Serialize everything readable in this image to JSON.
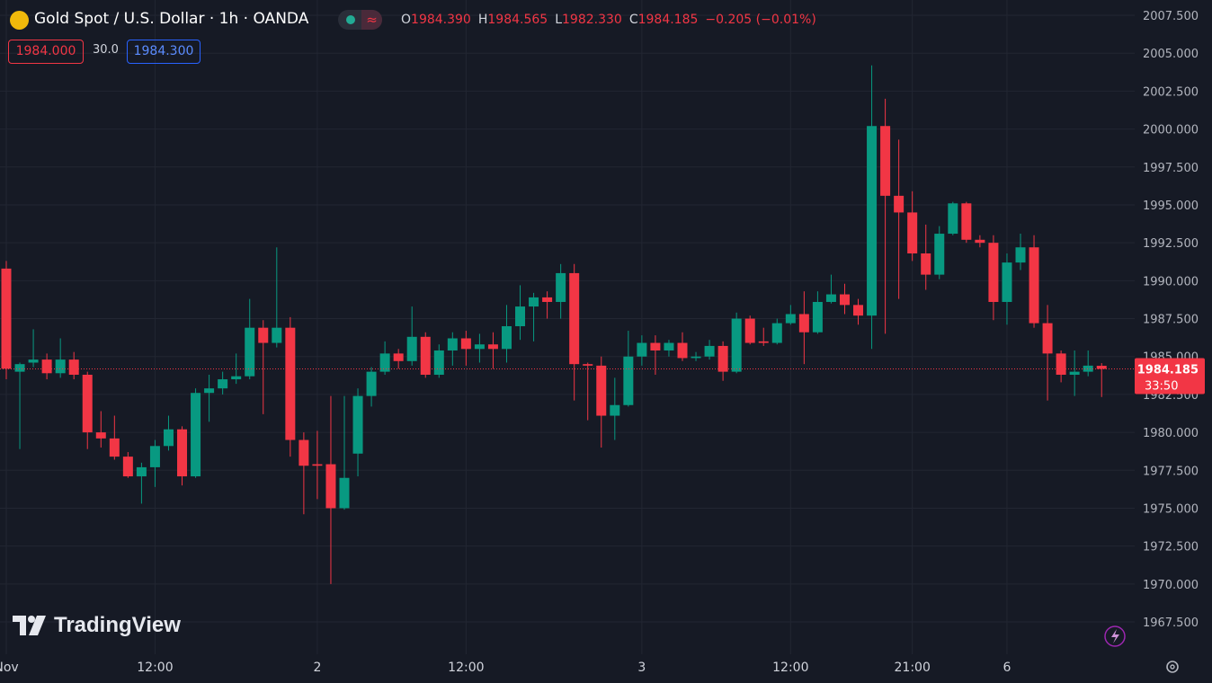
{
  "chart_data": {
    "type": "candlestick",
    "title": "Gold Spot / U.S. Dollar · 1h · OANDA",
    "ohlc_legend": [
      {
        "label": "O",
        "value": "1984.390"
      },
      {
        "label": "H",
        "value": "1984.565"
      },
      {
        "label": "L",
        "value": "1982.330"
      },
      {
        "label": "C",
        "value": "1984.185"
      }
    ],
    "change": "−0.205 (−0.01%)",
    "bid": "1984.000",
    "spread": "30.0",
    "ask": "1984.300",
    "last_price": {
      "value": 1984.185,
      "label": "1984.185"
    },
    "countdown": "33:50",
    "watermark": "TradingView",
    "up_color": "#089981",
    "down_color": "#f23645",
    "grid": true,
    "categories": [
      "Nov",
      null,
      null,
      null,
      null,
      null,
      null,
      null,
      null,
      null,
      null,
      "12:00",
      null,
      null,
      null,
      null,
      null,
      null,
      null,
      null,
      null,
      null,
      null,
      "2",
      null,
      null,
      null,
      null,
      null,
      null,
      null,
      null,
      null,
      null,
      "12:00",
      null,
      null,
      null,
      null,
      null,
      null,
      null,
      null,
      null,
      null,
      null,
      null,
      "3",
      null,
      null,
      null,
      null,
      null,
      null,
      null,
      null,
      null,
      null,
      "12:00",
      null,
      null,
      null,
      null,
      null,
      null,
      null,
      null,
      "21:00",
      null,
      null,
      null,
      null,
      null,
      null,
      "6",
      null,
      null,
      null,
      null,
      null,
      null,
      null
    ],
    "open": [
      1990.8,
      1984.0,
      1984.6,
      1984.8,
      1983.9,
      1984.8,
      1983.8,
      1980.0,
      1979.6,
      1978.4,
      1977.1,
      1977.7,
      1979.1,
      1980.2,
      1977.1,
      1982.6,
      1982.9,
      1983.5,
      1983.7,
      1986.9,
      1985.9,
      1986.9,
      1979.5,
      1977.9,
      1977.9,
      1975.0,
      1978.6,
      1982.4,
      1984.0,
      1985.2,
      1984.7,
      1986.3,
      1983.8,
      1985.4,
      1986.2,
      1985.5,
      1985.8,
      1985.5,
      1987.0,
      1988.3,
      1988.9,
      1988.6,
      1990.5,
      1984.5,
      1984.4,
      1981.1,
      1981.8,
      1985.0,
      1985.9,
      1985.4,
      1985.9,
      1984.9,
      1985.0,
      1985.7,
      1984.0,
      1987.5,
      1986.0,
      1985.9,
      1987.2,
      1987.8,
      1986.6,
      1988.6,
      1989.1,
      1988.4,
      1987.7,
      2000.2,
      1995.6,
      1994.5,
      1991.8,
      1990.4,
      1993.1,
      1995.1,
      1992.7,
      1992.5,
      1988.6,
      1991.2,
      1992.2,
      1987.2,
      1985.2,
      1983.8,
      1984.0,
      1984.39
    ],
    "high": [
      1991.3,
      1984.6,
      1986.8,
      1985.2,
      1986.2,
      1985.3,
      1984.0,
      1981.4,
      1981.1,
      1978.7,
      1978.0,
      1979.5,
      1981.1,
      1980.4,
      1982.9,
      1983.8,
      1984.0,
      1985.2,
      1988.8,
      1987.4,
      1992.2,
      1987.6,
      1980.0,
      1980.1,
      1982.4,
      1982.4,
      1982.9,
      1984.3,
      1986.0,
      1985.5,
      1988.3,
      1986.6,
      1985.8,
      1986.6,
      1986.7,
      1986.5,
      1986.6,
      1988.4,
      1989.7,
      1989.2,
      1989.3,
      1991.1,
      1991.1,
      1984.6,
      1985.0,
      1983.6,
      1986.7,
      1986.4,
      1986.4,
      1986.1,
      1986.6,
      1985.3,
      1986.1,
      1986.0,
      1987.9,
      1987.7,
      1986.9,
      1987.5,
      1988.4,
      1989.3,
      1989.3,
      1990.4,
      1989.8,
      1988.8,
      2004.2,
      2002.0,
      1999.3,
      1995.9,
      1993.7,
      1993.6,
      1995.2,
      1995.2,
      1993.0,
      1993.0,
      1991.8,
      1993.1,
      1993.0,
      1988.4,
      1985.4,
      1985.4,
      1985.4,
      1984.565
    ],
    "low": [
      1983.5,
      1978.9,
      1984.3,
      1983.5,
      1983.6,
      1983.5,
      1978.9,
      1979.0,
      1978.2,
      1977.0,
      1975.3,
      1976.4,
      1978.8,
      1976.5,
      1977.0,
      1980.7,
      1982.5,
      1983.2,
      1983.5,
      1981.2,
      1985.6,
      1978.4,
      1974.6,
      1975.6,
      1970.0,
      1974.9,
      1977.1,
      1981.7,
      1983.8,
      1984.2,
      1984.4,
      1983.6,
      1983.6,
      1984.4,
      1984.4,
      1984.6,
      1984.2,
      1984.6,
      1986.1,
      1986.0,
      1987.5,
      1987.5,
      1982.1,
      1980.8,
      1979.0,
      1979.5,
      1981.7,
      1984.4,
      1983.8,
      1985.0,
      1984.7,
      1984.7,
      1984.8,
      1983.4,
      1983.9,
      1985.8,
      1985.7,
      1985.8,
      1987.1,
      1984.5,
      1986.5,
      1988.5,
      1987.8,
      1987.1,
      1985.5,
      1986.5,
      1988.8,
      1991.3,
      1989.4,
      1990.1,
      1993.0,
      1992.5,
      1992.2,
      1987.4,
      1987.1,
      1990.7,
      1986.9,
      1982.1,
      1983.3,
      1982.4,
      1983.7,
      1982.33
    ],
    "close": [
      1984.2,
      1984.5,
      1984.8,
      1983.9,
      1984.8,
      1983.8,
      1980.0,
      1979.6,
      1978.4,
      1977.1,
      1977.7,
      1979.1,
      1980.2,
      1977.1,
      1982.6,
      1982.9,
      1983.5,
      1983.7,
      1986.9,
      1985.9,
      1986.9,
      1979.5,
      1977.8,
      1977.8,
      1975.0,
      1977.0,
      1982.4,
      1984.0,
      1985.2,
      1984.7,
      1986.3,
      1983.8,
      1985.4,
      1986.2,
      1985.5,
      1985.8,
      1985.5,
      1987.0,
      1988.3,
      1988.9,
      1988.6,
      1990.5,
      1984.5,
      1984.4,
      1981.1,
      1981.8,
      1985.0,
      1985.9,
      1985.4,
      1985.9,
      1984.9,
      1985.0,
      1985.7,
      1984.0,
      1987.5,
      1985.9,
      1985.9,
      1987.2,
      1987.8,
      1986.6,
      1988.6,
      1989.1,
      1988.4,
      1987.7,
      2000.2,
      1995.6,
      1994.5,
      1991.8,
      1990.4,
      1993.1,
      1995.1,
      1992.7,
      1992.5,
      1988.6,
      1991.2,
      1992.2,
      1987.2,
      1985.2,
      1983.8,
      1984.0,
      1984.4,
      1984.185
    ],
    "ylim": [
      1965.37,
      2008.51
    ],
    "yticks": [
      {
        "value": 1967.5,
        "label": "1967.500"
      },
      {
        "value": 1970,
        "label": "1970.000"
      },
      {
        "value": 1972.5,
        "label": "1972.500"
      },
      {
        "value": 1975,
        "label": "1975.000"
      },
      {
        "value": 1977.5,
        "label": "1977.500"
      },
      {
        "value": 1980,
        "label": "1980.000"
      },
      {
        "value": 1982.5,
        "label": "1982.500"
      },
      {
        "value": 1985,
        "label": "1985.000"
      },
      {
        "value": 1987.5,
        "label": "1987.500"
      },
      {
        "value": 1990,
        "label": "1990.000"
      },
      {
        "value": 1992.5,
        "label": "1992.500"
      },
      {
        "value": 1995,
        "label": "1995.000"
      },
      {
        "value": 1997.5,
        "label": "1997.500"
      },
      {
        "value": 2000,
        "label": "2000.000"
      },
      {
        "value": 2002.5,
        "label": "2002.500"
      },
      {
        "value": 2005,
        "label": "2005.000"
      },
      {
        "value": 2007.5,
        "label": "2007.500"
      }
    ]
  }
}
